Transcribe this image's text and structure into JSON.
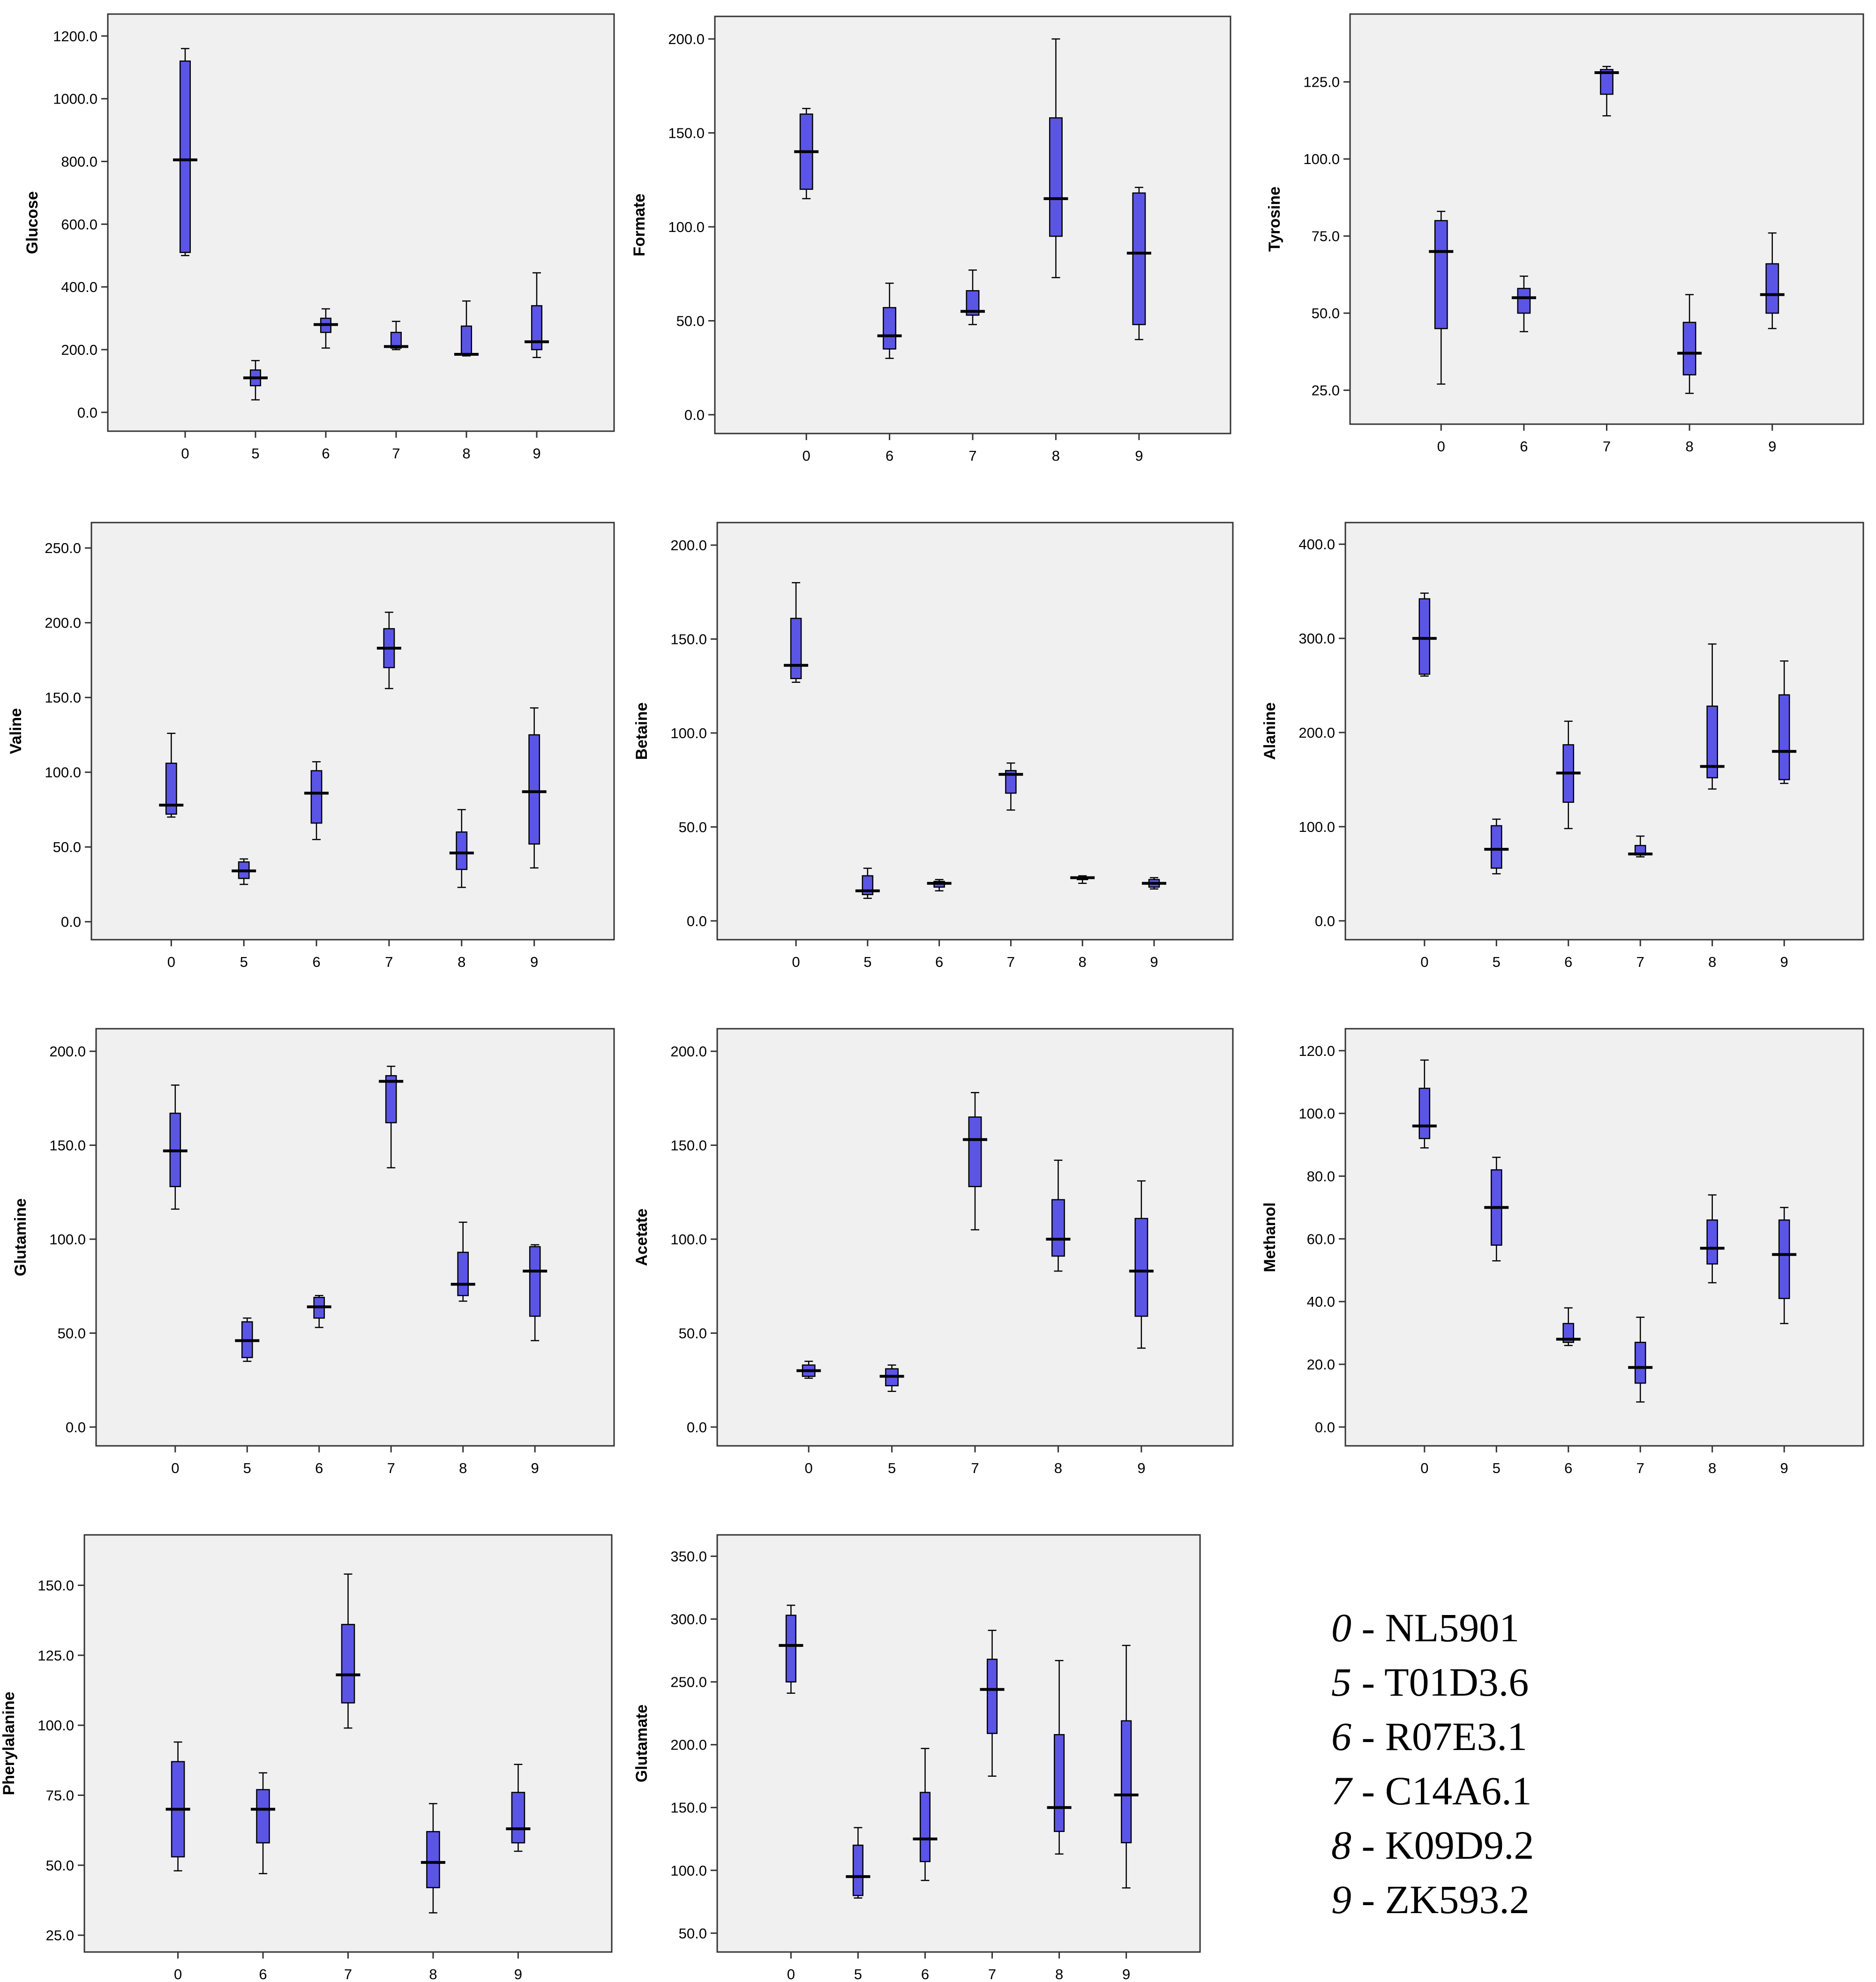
{
  "chart_data": [
    {
      "type": "box",
      "ylabel": "Glucose",
      "ylim": [
        -60,
        1270
      ],
      "yticks": [
        0,
        200,
        400,
        600,
        800,
        1000,
        1200
      ],
      "ytick_labels": [
        "0.0",
        "200.0",
        "400.0",
        "600.0",
        "800.0",
        "1000.0",
        "1200.0"
      ],
      "categories": [
        "0",
        "5",
        "6",
        "7",
        "8",
        "9"
      ],
      "boxes": [
        {
          "category": "0",
          "min": 500,
          "q1": 510,
          "median": 805,
          "q3": 1120,
          "max": 1160
        },
        {
          "category": "5",
          "min": 40,
          "q1": 85,
          "median": 110,
          "q3": 135,
          "max": 165
        },
        {
          "category": "6",
          "min": 205,
          "q1": 255,
          "median": 280,
          "q3": 300,
          "max": 330
        },
        {
          "category": "7",
          "min": 200,
          "q1": 205,
          "median": 210,
          "q3": 255,
          "max": 290
        },
        {
          "category": "8",
          "min": 180,
          "q1": 185,
          "median": 185,
          "q3": 275,
          "max": 355
        },
        {
          "category": "9",
          "min": 175,
          "q1": 200,
          "median": 225,
          "q3": 340,
          "max": 445
        }
      ]
    },
    {
      "type": "box",
      "ylabel": "Formate",
      "ylim": [
        -10,
        212
      ],
      "yticks": [
        0,
        50,
        100,
        150,
        200
      ],
      "ytick_labels": [
        "0.0",
        "50.0",
        "100.0",
        "150.0",
        "200.0"
      ],
      "categories": [
        "0",
        "6",
        "7",
        "8",
        "9"
      ],
      "boxes": [
        {
          "category": "0",
          "min": 115,
          "q1": 120,
          "median": 140,
          "q3": 160,
          "max": 163
        },
        {
          "category": "6",
          "min": 30,
          "q1": 35,
          "median": 42,
          "q3": 57,
          "max": 70
        },
        {
          "category": "7",
          "min": 48,
          "q1": 53,
          "median": 55,
          "q3": 66,
          "max": 77
        },
        {
          "category": "8",
          "min": 73,
          "q1": 95,
          "median": 115,
          "q3": 158,
          "max": 200
        },
        {
          "category": "9",
          "min": 40,
          "q1": 48,
          "median": 86,
          "q3": 118,
          "max": 121
        }
      ]
    },
    {
      "type": "box",
      "ylabel": "Tyrosine",
      "ylim": [
        14,
        147
      ],
      "yticks": [
        25,
        50,
        75,
        100,
        125
      ],
      "ytick_labels": [
        "25.0",
        "50.0",
        "75.0",
        "100.0",
        "125.0"
      ],
      "categories": [
        "0",
        "6",
        "7",
        "8",
        "9"
      ],
      "boxes": [
        {
          "category": "0",
          "min": 27,
          "q1": 45,
          "median": 70,
          "q3": 80,
          "max": 83
        },
        {
          "category": "6",
          "min": 44,
          "q1": 50,
          "median": 55,
          "q3": 58,
          "max": 62
        },
        {
          "category": "7",
          "min": 114,
          "q1": 121,
          "median": 128,
          "q3": 129,
          "max": 130
        },
        {
          "category": "8",
          "min": 24,
          "q1": 30,
          "median": 37,
          "q3": 47,
          "max": 56
        },
        {
          "category": "9",
          "min": 45,
          "q1": 50,
          "median": 56,
          "q3": 66,
          "max": 76
        }
      ]
    },
    {
      "type": "box",
      "ylabel": "Valine",
      "ylim": [
        -12,
        267
      ],
      "yticks": [
        0,
        50,
        100,
        150,
        200,
        250
      ],
      "ytick_labels": [
        "0.0",
        "50.0",
        "100.0",
        "150.0",
        "200.0",
        "250.0"
      ],
      "categories": [
        "0",
        "5",
        "6",
        "7",
        "8",
        "9"
      ],
      "boxes": [
        {
          "category": "0",
          "min": 70,
          "q1": 72,
          "median": 78,
          "q3": 106,
          "max": 126
        },
        {
          "category": "5",
          "min": 25,
          "q1": 29,
          "median": 34,
          "q3": 40,
          "max": 42
        },
        {
          "category": "6",
          "min": 55,
          "q1": 66,
          "median": 86,
          "q3": 101,
          "max": 107
        },
        {
          "category": "7",
          "min": 156,
          "q1": 170,
          "median": 183,
          "q3": 196,
          "max": 207
        },
        {
          "category": "8",
          "min": 23,
          "q1": 35,
          "median": 46,
          "q3": 60,
          "max": 75
        },
        {
          "category": "9",
          "min": 36,
          "q1": 52,
          "median": 87,
          "q3": 125,
          "max": 143
        }
      ]
    },
    {
      "type": "box",
      "ylabel": "Betaine",
      "ylim": [
        -10,
        212
      ],
      "yticks": [
        0,
        50,
        100,
        150,
        200
      ],
      "ytick_labels": [
        "0.0",
        "50.0",
        "100.0",
        "150.0",
        "200.0"
      ],
      "categories": [
        "0",
        "5",
        "6",
        "7",
        "8",
        "9"
      ],
      "boxes": [
        {
          "category": "0",
          "min": 127,
          "q1": 129,
          "median": 136,
          "q3": 161,
          "max": 180
        },
        {
          "category": "5",
          "min": 12,
          "q1": 14,
          "median": 16,
          "q3": 24,
          "max": 28
        },
        {
          "category": "6",
          "min": 16,
          "q1": 18,
          "median": 20,
          "q3": 21,
          "max": 22
        },
        {
          "category": "7",
          "min": 59,
          "q1": 68,
          "median": 78,
          "q3": 80,
          "max": 84
        },
        {
          "category": "8",
          "min": 20,
          "q1": 22,
          "median": 23,
          "q3": 23,
          "max": 24
        },
        {
          "category": "9",
          "min": 17,
          "q1": 18,
          "median": 20,
          "q3": 22,
          "max": 23
        }
      ]
    },
    {
      "type": "box",
      "ylabel": "Alanine",
      "ylim": [
        -20,
        423
      ],
      "yticks": [
        0,
        100,
        200,
        300,
        400
      ],
      "ytick_labels": [
        "0.0",
        "100.0",
        "200.0",
        "300.0",
        "400.0"
      ],
      "categories": [
        "0",
        "5",
        "6",
        "7",
        "8",
        "9"
      ],
      "boxes": [
        {
          "category": "0",
          "min": 260,
          "q1": 262,
          "median": 300,
          "q3": 342,
          "max": 348
        },
        {
          "category": "5",
          "min": 50,
          "q1": 56,
          "median": 76,
          "q3": 101,
          "max": 108
        },
        {
          "category": "6",
          "min": 98,
          "q1": 126,
          "median": 157,
          "q3": 187,
          "max": 212
        },
        {
          "category": "7",
          "min": 68,
          "q1": 70,
          "median": 71,
          "q3": 80,
          "max": 90
        },
        {
          "category": "8",
          "min": 140,
          "q1": 152,
          "median": 164,
          "q3": 228,
          "max": 294
        },
        {
          "category": "9",
          "min": 146,
          "q1": 150,
          "median": 180,
          "q3": 240,
          "max": 276
        }
      ]
    },
    {
      "type": "box",
      "ylabel": "Glutamine",
      "ylim": [
        -10,
        212
      ],
      "yticks": [
        0,
        50,
        100,
        150,
        200
      ],
      "ytick_labels": [
        "0.0",
        "50.0",
        "100.0",
        "150.0",
        "200.0"
      ],
      "categories": [
        "0",
        "5",
        "6",
        "7",
        "8",
        "9"
      ],
      "boxes": [
        {
          "category": "0",
          "min": 116,
          "q1": 128,
          "median": 147,
          "q3": 167,
          "max": 182
        },
        {
          "category": "5",
          "min": 35,
          "q1": 37,
          "median": 46,
          "q3": 56,
          "max": 58
        },
        {
          "category": "6",
          "min": 53,
          "q1": 58,
          "median": 64,
          "q3": 69,
          "max": 70
        },
        {
          "category": "7",
          "min": 138,
          "q1": 162,
          "median": 184,
          "q3": 187,
          "max": 192
        },
        {
          "category": "8",
          "min": 67,
          "q1": 70,
          "median": 76,
          "q3": 93,
          "max": 109
        },
        {
          "category": "9",
          "min": 46,
          "q1": 59,
          "median": 83,
          "q3": 96,
          "max": 97
        }
      ]
    },
    {
      "type": "box",
      "ylabel": "Acetate",
      "ylim": [
        -10,
        212
      ],
      "yticks": [
        0,
        50,
        100,
        150,
        200
      ],
      "ytick_labels": [
        "0.0",
        "50.0",
        "100.0",
        "150.0",
        "200.0"
      ],
      "categories": [
        "0",
        "5",
        "7",
        "8",
        "9"
      ],
      "boxes": [
        {
          "category": "0",
          "min": 26,
          "q1": 27,
          "median": 30,
          "q3": 33,
          "max": 35
        },
        {
          "category": "5",
          "min": 19,
          "q1": 22,
          "median": 27,
          "q3": 31,
          "max": 33
        },
        {
          "category": "7",
          "min": 105,
          "q1": 128,
          "median": 153,
          "q3": 165,
          "max": 178
        },
        {
          "category": "8",
          "min": 83,
          "q1": 91,
          "median": 100,
          "q3": 121,
          "max": 142
        },
        {
          "category": "9",
          "min": 42,
          "q1": 59,
          "median": 83,
          "q3": 111,
          "max": 131
        }
      ]
    },
    {
      "type": "box",
      "ylabel": "Methanol",
      "ylim": [
        -6,
        127
      ],
      "yticks": [
        0,
        20,
        40,
        60,
        80,
        100,
        120
      ],
      "ytick_labels": [
        "0.0",
        "20.0",
        "40.0",
        "60.0",
        "80.0",
        "100.0",
        "120.0"
      ],
      "categories": [
        "0",
        "5",
        "6",
        "7",
        "8",
        "9"
      ],
      "boxes": [
        {
          "category": "0",
          "min": 89,
          "q1": 92,
          "median": 96,
          "q3": 108,
          "max": 117
        },
        {
          "category": "5",
          "min": 53,
          "q1": 58,
          "median": 70,
          "q3": 82,
          "max": 86
        },
        {
          "category": "6",
          "min": 26,
          "q1": 27,
          "median": 28,
          "q3": 33,
          "max": 38
        },
        {
          "category": "7",
          "min": 8,
          "q1": 14,
          "median": 19,
          "q3": 27,
          "max": 35
        },
        {
          "category": "8",
          "min": 46,
          "q1": 52,
          "median": 57,
          "q3": 66,
          "max": 74
        },
        {
          "category": "9",
          "min": 33,
          "q1": 41,
          "median": 55,
          "q3": 66,
          "max": 70
        }
      ]
    },
    {
      "type": "box",
      "ylabel": "Pherylalanine",
      "ylim": [
        19,
        168
      ],
      "yticks": [
        25,
        50,
        75,
        100,
        125,
        150
      ],
      "ytick_labels": [
        "25.0",
        "50.0",
        "75.0",
        "100.0",
        "125.0",
        "150.0"
      ],
      "categories": [
        "0",
        "6",
        "7",
        "8",
        "9"
      ],
      "boxes": [
        {
          "category": "0",
          "min": 48,
          "q1": 53,
          "median": 70,
          "q3": 87,
          "max": 94
        },
        {
          "category": "6",
          "min": 47,
          "q1": 58,
          "median": 70,
          "q3": 77,
          "max": 83
        },
        {
          "category": "7",
          "min": 99,
          "q1": 108,
          "median": 118,
          "q3": 136,
          "max": 154
        },
        {
          "category": "8",
          "min": 33,
          "q1": 42,
          "median": 51,
          "q3": 62,
          "max": 72
        },
        {
          "category": "9",
          "min": 55,
          "q1": 58,
          "median": 63,
          "q3": 76,
          "max": 86
        }
      ]
    },
    {
      "type": "box",
      "ylabel": "Glutamate",
      "ylim": [
        35,
        367
      ],
      "yticks": [
        50,
        100,
        150,
        200,
        250,
        300,
        350
      ],
      "ytick_labels": [
        "50.0",
        "100.0",
        "150.0",
        "200.0",
        "250.0",
        "300.0",
        "350.0"
      ],
      "categories": [
        "0",
        "5",
        "6",
        "7",
        "8",
        "9"
      ],
      "boxes": [
        {
          "category": "0",
          "min": 241,
          "q1": 250,
          "median": 279,
          "q3": 303,
          "max": 311
        },
        {
          "category": "5",
          "min": 78,
          "q1": 80,
          "median": 95,
          "q3": 120,
          "max": 134
        },
        {
          "category": "6",
          "min": 92,
          "q1": 107,
          "median": 125,
          "q3": 162,
          "max": 197
        },
        {
          "category": "7",
          "min": 175,
          "q1": 209,
          "median": 244,
          "q3": 268,
          "max": 291
        },
        {
          "category": "8",
          "min": 113,
          "q1": 131,
          "median": 150,
          "q3": 208,
          "max": 267
        },
        {
          "category": "9",
          "min": 86,
          "q1": 122,
          "median": 160,
          "q3": 219,
          "max": 279
        }
      ]
    }
  ],
  "legend": {
    "items": [
      {
        "code": "0",
        "label": "- NL5901"
      },
      {
        "code": "5",
        "label": "- T01D3.6"
      },
      {
        "code": "6",
        "label": "- R07E3.1"
      },
      {
        "code": "7",
        "label": "- C14A6.1"
      },
      {
        "code": "8",
        "label": "- K09D9.2"
      },
      {
        "code": "9",
        "label": "- ZK593.2"
      }
    ]
  },
  "colors": {
    "box_fill": "#5b55e6",
    "plot_bg": "#f0f0f0",
    "stroke": "#000000"
  }
}
